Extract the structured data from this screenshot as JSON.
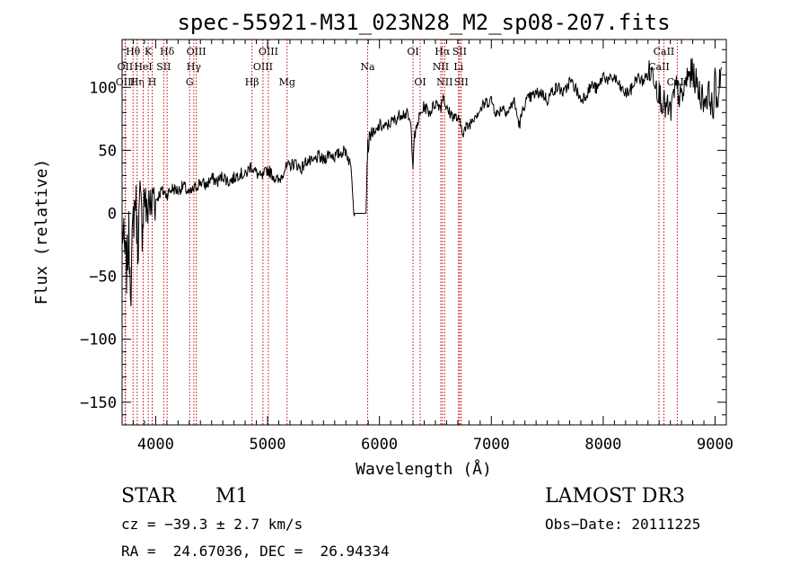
{
  "chart_data": {
    "type": "line",
    "title": "spec-55921-M31_023N28_M2_sp08-207.fits",
    "xlabel": "Wavelength (Å)",
    "ylabel": "Flux (relative)",
    "xlim": [
      3700,
      9100
    ],
    "ylim": [
      -168,
      138
    ],
    "x_ticks": [
      4000,
      5000,
      6000,
      7000,
      8000,
      9000
    ],
    "y_ticks": [
      -150,
      -100,
      -50,
      0,
      50,
      100
    ],
    "x_tick_labels": [
      "4000",
      "5000",
      "6000",
      "7000",
      "8000",
      "9000"
    ],
    "y_tick_labels": [
      "−150",
      "−100",
      "−50",
      "0",
      "50",
      "100"
    ],
    "series": [
      {
        "name": "spectrum",
        "x": [
          3700,
          3720,
          3740,
          3760,
          3780,
          3800,
          3820,
          3840,
          3860,
          3880,
          3900,
          3920,
          3940,
          3960,
          3980,
          4000,
          4050,
          4100,
          4150,
          4200,
          4250,
          4300,
          4350,
          4400,
          4450,
          4500,
          4550,
          4600,
          4650,
          4700,
          4750,
          4800,
          4850,
          4900,
          4950,
          5000,
          5050,
          5100,
          5150,
          5200,
          5250,
          5300,
          5350,
          5400,
          5450,
          5500,
          5550,
          5600,
          5650,
          5700,
          5750,
          5760,
          5770,
          5780,
          5790,
          5800,
          5850,
          5880,
          5890,
          5895,
          5900,
          5910,
          5930,
          5960,
          6000,
          6050,
          6100,
          6150,
          6200,
          6250,
          6280,
          6300,
          6310,
          6320,
          6350,
          6400,
          6450,
          6500,
          6550,
          6570,
          6600,
          6650,
          6700,
          6750,
          6800,
          6850,
          6900,
          6950,
          7000,
          7050,
          7100,
          7150,
          7200,
          7250,
          7300,
          7350,
          7400,
          7450,
          7500,
          7550,
          7600,
          7650,
          7700,
          7750,
          7800,
          7850,
          7900,
          7950,
          8000,
          8050,
          8100,
          8150,
          8200,
          8250,
          8300,
          8350,
          8400,
          8450,
          8500,
          8550,
          8600,
          8650,
          8700,
          8750,
          8800,
          8850,
          8900,
          8950,
          8980,
          9000,
          9020,
          9040,
          9060
        ],
        "y": [
          -10,
          -30,
          -45,
          -20,
          -55,
          -5,
          15,
          -25,
          10,
          -10,
          20,
          -5,
          15,
          0,
          20,
          10,
          18,
          15,
          20,
          18,
          22,
          15,
          20,
          25,
          22,
          28,
          25,
          30,
          25,
          28,
          32,
          30,
          38,
          32,
          28,
          35,
          30,
          25,
          35,
          38,
          40,
          35,
          42,
          40,
          45,
          42,
          48,
          45,
          48,
          50,
          35,
          20,
          5,
          0,
          0,
          0,
          0,
          0,
          40,
          55,
          50,
          60,
          65,
          62,
          70,
          68,
          72,
          75,
          80,
          78,
          70,
          40,
          60,
          62,
          75,
          85,
          80,
          88,
          85,
          95,
          82,
          78,
          75,
          65,
          70,
          78,
          82,
          88,
          90,
          78,
          85,
          80,
          90,
          70,
          88,
          92,
          95,
          96,
          90,
          98,
          100,
          95,
          105,
          100,
          90,
          95,
          102,
          98,
          110,
          105,
          108,
          100,
          95,
          98,
          108,
          105,
          110,
          112,
          95,
          85,
          80,
          100,
          90,
          108,
          112,
          98,
          90,
          95,
          80,
          105,
          85,
          110,
          115
        ]
      }
    ],
    "lines": [
      {
        "x": 3727,
        "label": "OII",
        "row": 2
      },
      {
        "x": 3730,
        "label": "OIII",
        "row": 3
      },
      {
        "x": 3798,
        "label": "Hθ",
        "row": 1
      },
      {
        "x": 3835,
        "label": "Hη",
        "row": 3
      },
      {
        "x": 3889,
        "label": "HeI",
        "row": 2
      },
      {
        "x": 3934,
        "label": "K",
        "row": 1
      },
      {
        "x": 3969,
        "label": "H",
        "row": 3
      },
      {
        "x": 4072,
        "label": "SII",
        "row": 2
      },
      {
        "x": 4102,
        "label": "Hδ",
        "row": 1
      },
      {
        "x": 4304,
        "label": "G",
        "row": 3
      },
      {
        "x": 4341,
        "label": "Hγ",
        "row": 2
      },
      {
        "x": 4363,
        "label": "OIII",
        "row": 1
      },
      {
        "x": 4861,
        "label": "Hβ",
        "row": 3
      },
      {
        "x": 4959,
        "label": "OIII",
        "row": 2
      },
      {
        "x": 5007,
        "label": "OIII",
        "row": 1
      },
      {
        "x": 5175,
        "label": "Mg",
        "row": 3
      },
      {
        "x": 5894,
        "label": "Na",
        "row": 2
      },
      {
        "x": 6300,
        "label": "OI",
        "row": 1
      },
      {
        "x": 6364,
        "label": "OI",
        "row": 3
      },
      {
        "x": 6548,
        "label": "NII",
        "row": 2
      },
      {
        "x": 6563,
        "label": "Hα",
        "row": 1
      },
      {
        "x": 6583,
        "label": "NII",
        "row": 3
      },
      {
        "x": 6707,
        "label": "Li",
        "row": 2
      },
      {
        "x": 6716,
        "label": "SII",
        "row": 1
      },
      {
        "x": 6731,
        "label": "SII",
        "row": 3
      },
      {
        "x": 8498,
        "label": "CaII",
        "row": 2
      },
      {
        "x": 8542,
        "label": "CaII",
        "row": 1
      },
      {
        "x": 8662,
        "label": "CaII",
        "row": 3
      }
    ]
  },
  "info": {
    "class": "STAR",
    "subclass": "M1",
    "survey": "LAMOST DR3",
    "cz": "cz = −39.3 ± 2.7 km/s",
    "obs_date": "Obs−Date: 20111225",
    "radec": "RA =  24.67036, DEC =  26.94334"
  }
}
